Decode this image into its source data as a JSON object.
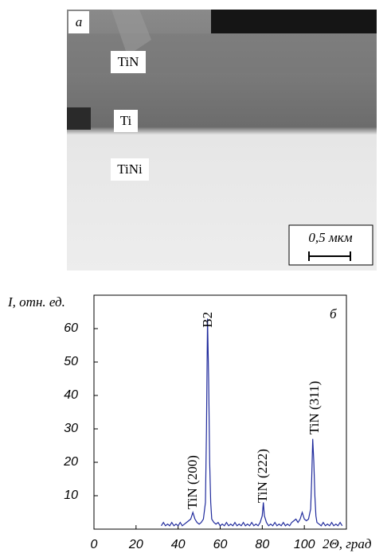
{
  "micrograph": {
    "panel_label": "а",
    "layers": [
      "TiN",
      "Ti",
      "TiNi"
    ],
    "scale_bar": "0,5 мкм"
  },
  "chart_data": {
    "type": "line",
    "panel_label": "б",
    "y_label": "I, отн. ед.",
    "x_label": "2Θ, град",
    "annotations": [
      "TiN (200)",
      "B2",
      "TiN (222)",
      "TiN (311)"
    ],
    "xlim": [
      0,
      120
    ],
    "ylim": [
      0,
      70
    ],
    "xticks": [
      0,
      20,
      40,
      60,
      80,
      100
    ],
    "yticks": [
      10,
      20,
      30,
      40,
      50,
      60
    ],
    "series": [
      {
        "color": "#1f2a9c",
        "x": [
          32,
          33,
          34,
          35,
          36,
          37,
          38,
          39,
          40,
          41,
          42,
          43,
          44,
          45,
          46,
          47,
          48,
          49,
          50,
          51,
          52,
          53,
          53.5,
          54,
          54.5,
          55,
          55.5,
          56,
          57,
          58,
          59,
          60,
          61,
          62,
          63,
          64,
          65,
          66,
          67,
          68,
          69,
          70,
          71,
          72,
          73,
          74,
          75,
          76,
          77,
          78,
          79,
          80,
          80.5,
          81,
          82,
          83,
          84,
          85,
          86,
          87,
          88,
          89,
          90,
          91,
          92,
          93,
          94,
          95,
          96,
          97,
          98,
          99,
          100,
          101,
          102,
          103,
          103.5,
          104,
          104.5,
          105,
          105.5,
          106,
          107,
          108,
          109,
          110,
          111,
          112,
          113,
          114,
          115,
          116,
          117,
          118
        ],
        "values": [
          1,
          2,
          1,
          1.5,
          1,
          2,
          1,
          1.5,
          1,
          2,
          1,
          1.5,
          2,
          2.5,
          3,
          5,
          3,
          2,
          1.5,
          2,
          3,
          8,
          30,
          63,
          45,
          20,
          8,
          3,
          2,
          1.5,
          2,
          1,
          1.5,
          1,
          2,
          1,
          1.5,
          1,
          2,
          1,
          1.5,
          1,
          2,
          1,
          1.5,
          1,
          2,
          1,
          1.5,
          1,
          2,
          4,
          8,
          4,
          2,
          1,
          1.5,
          1,
          2,
          1,
          1.5,
          1,
          2,
          1,
          1.5,
          1,
          2,
          2.5,
          3,
          2,
          3,
          5,
          3,
          2.5,
          3,
          6,
          15,
          27,
          20,
          10,
          4,
          2,
          1.5,
          1,
          2,
          1,
          1.5,
          1,
          2,
          1,
          1.5,
          1,
          2,
          1
        ]
      }
    ]
  }
}
